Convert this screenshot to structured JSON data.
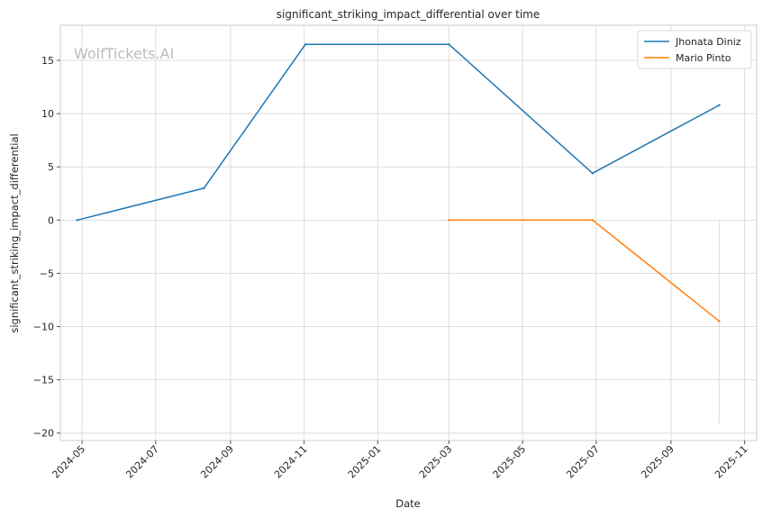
{
  "chart_data": {
    "type": "line",
    "title": "significant_striking_impact_differential over time",
    "xlabel": "Date",
    "ylabel": "significant_striking_impact_differential",
    "watermark": "WolfTickets.AI",
    "x_ticks": [
      "2024-05",
      "2024-07",
      "2024-09",
      "2024-11",
      "2025-01",
      "2025-03",
      "2025-05",
      "2025-07",
      "2025-09",
      "2025-11"
    ],
    "y_ticks": [
      "15",
      "10",
      "5",
      "0",
      "−5",
      "−10",
      "−15",
      "−20"
    ],
    "xlim": [
      "2024-04-13",
      "2025-11-11"
    ],
    "ylim": [
      -20.7,
      18.3
    ],
    "grid": true,
    "legend_position": "top-right",
    "series": [
      {
        "name": "Jhonata Diniz",
        "color": "#1f77b4",
        "x": [
          "2024-04-27",
          "2024-08-10",
          "2024-11-02",
          "2025-03-01",
          "2025-06-28",
          "2025-10-11"
        ],
        "y": [
          0.0,
          3.0,
          16.5,
          16.5,
          4.4,
          10.8
        ]
      },
      {
        "name": "Mario Pinto",
        "color": "#ff7f0e",
        "x": [
          "2025-03-01",
          "2025-06-28",
          "2025-10-11"
        ],
        "y": [
          0.0,
          0.0,
          -9.5
        ]
      }
    ],
    "annotations": [
      {
        "type": "vertical-band",
        "color": "#ff7f0e",
        "x": "2025-10-11",
        "y_from": -19.2,
        "y_to": 0.0
      }
    ]
  }
}
